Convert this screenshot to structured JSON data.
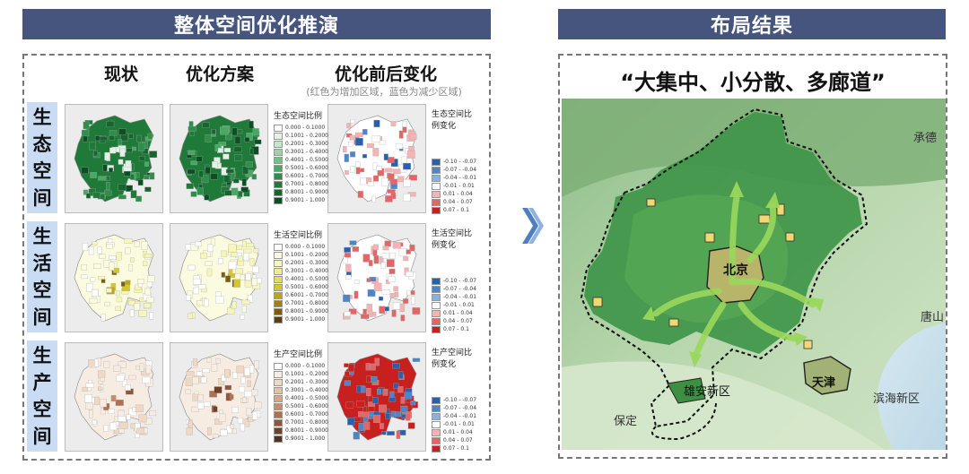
{
  "left": {
    "banner": "整体空间优化推演",
    "col_status": "现状",
    "col_plan": "优化方案",
    "col_change": "优化前后变化",
    "change_note": "(红色为增加区域，蓝色为减少区域)",
    "rows": [
      {
        "label_chars": [
          "生",
          "态",
          "空",
          "间"
        ],
        "key": "eco",
        "legend_title": "生态空间比例",
        "legend_items": [
          "0.000 - 0.1000",
          "0.1001 - 0.2000",
          "0.2001 - 0.3000",
          "0.3001 - 0.4000",
          "0.4001 - 0.5000",
          "0.5001 - 0.6000",
          "0.6001 - 0.7000",
          "0.7001 - 0.8000",
          "0.8001 - 0.9000",
          "0.9001 - 1.000"
        ],
        "change_title": "生态空间比例变化",
        "change_items": [
          "-0.10 - -0.07",
          "-0.07 - -0.04",
          "-0.04 - -0.01",
          "-0.01 - 0.01",
          "0.01 - 0.04",
          "0.04 - 0.07",
          "0.07 - 0.1"
        ]
      },
      {
        "label_chars": [
          "生",
          "活",
          "空",
          "间"
        ],
        "key": "life",
        "legend_title": "生活空间比例",
        "legend_items": [
          "0.000 - 0.1000",
          "0.1001 - 0.2000",
          "0.2001 - 0.3000",
          "0.3001 - 0.4000",
          "0.4001 - 0.5000",
          "0.5001 - 0.6000",
          "0.6001 - 0.7000",
          "0.7001 - 0.8000",
          "0.8001 - 0.9000",
          "0.9001 - 1.000"
        ],
        "change_title": "生活空间比例变化",
        "change_items": [
          "-0.10 - -0.07",
          "-0.07 - -0.04",
          "-0.04 - -0.01",
          "-0.01 - 0.01",
          "0.01 - 0.04",
          "0.04 - 0.07",
          "0.07 - 0.1"
        ]
      },
      {
        "label_chars": [
          "生",
          "产",
          "空",
          "间"
        ],
        "key": "prod",
        "legend_title": "生产空间比例",
        "legend_items": [
          "0.000 - 0.1000",
          "0.1001 - 0.2000",
          "0.2001 - 0.3000",
          "0.3001 - 0.4000",
          "0.4001 - 0.5000",
          "0.5001 - 0.6000",
          "0.6001 - 0.7000",
          "0.7001 - 0.8000",
          "0.8001 - 0.9000",
          "0.9001 - 1.000"
        ],
        "change_title": "生产空间比例变化",
        "change_items": [
          "-0.10 - -0.07",
          "-0.07 - -0.04",
          "-0.04 - -0.01",
          "-0.01 - 0.01",
          "0.01 - 0.04",
          "0.04 - 0.07",
          "0.07 - 0.1"
        ]
      }
    ]
  },
  "right": {
    "banner": "布局结果",
    "headline": "“大集中、小分散、多廊道”",
    "places": {
      "chengde": "承德",
      "beijing": "北京",
      "tangshan": "唐山",
      "tianjin": "天津",
      "xiongan": "雄安新区",
      "binhai": "滨海新区",
      "baoding": "保定"
    }
  },
  "colors": {
    "banner": "#46557d",
    "eco_ramp": [
      "#ffffff",
      "#e3f1e6",
      "#c4e4cb",
      "#9dd3a9",
      "#73c086",
      "#49a862",
      "#2e8e4a",
      "#1f7a3a",
      "#15652f",
      "#0b4f22"
    ],
    "life_ramp": [
      "#ffffff",
      "#fbfbe0",
      "#f6f6b8",
      "#eeee8c",
      "#e3df55",
      "#d6c62e",
      "#bfa31f",
      "#9f7f17",
      "#7b5d12",
      "#5a400c"
    ],
    "prod_ramp": [
      "#ffffff",
      "#f7ece2",
      "#efd8c4",
      "#e4c1a3",
      "#d6a684",
      "#c78b68",
      "#b06f4f",
      "#92553a",
      "#723f29",
      "#55301f"
    ],
    "change_ramp": [
      "#2a5fae",
      "#4f84c6",
      "#8ab1de",
      "#ffffff",
      "#f5b3b3",
      "#e36565",
      "#c8201e"
    ]
  }
}
